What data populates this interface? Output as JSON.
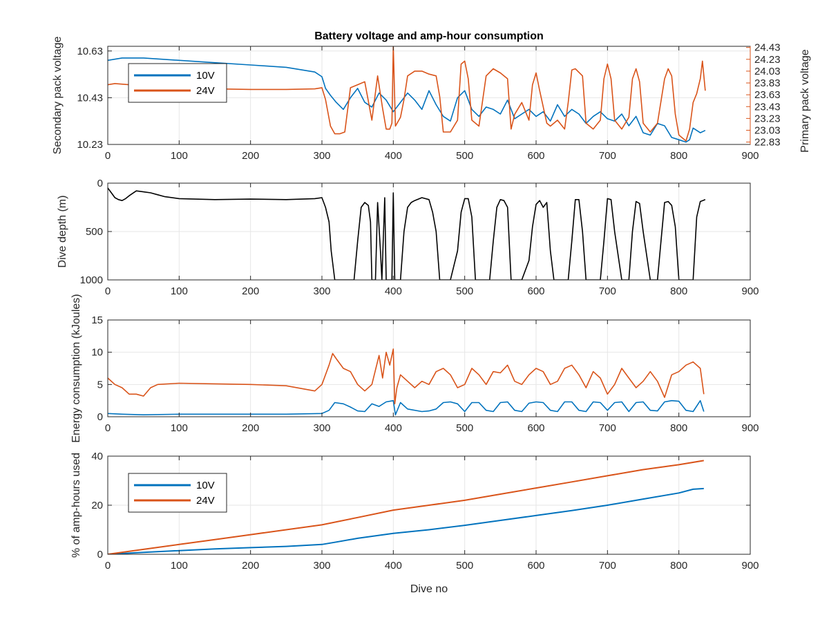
{
  "figure": {
    "title": "Battery voltage and amp-hour consumption",
    "xlabel": "Dive no"
  },
  "colors": {
    "blue": "#0072BD",
    "orange": "#D95319",
    "black": "#000000",
    "grid": "#e6e6e6",
    "axis": "#262626"
  },
  "chart_data": [
    {
      "type": "line",
      "title": "Battery voltage and amp-hour consumption",
      "xlim": [
        0,
        900
      ],
      "xticks": [
        0,
        100,
        200,
        300,
        400,
        500,
        600,
        700,
        800,
        900
      ],
      "ylabel": "Secondary pack voltage",
      "ylim": [
        10.23,
        10.65
      ],
      "yticks": [
        10.23,
        10.43,
        10.63
      ],
      "ytick_labels": [
        "10.23",
        "10.43",
        "10.63"
      ],
      "y2label": "Primary pack voltage",
      "y2lim": [
        22.79,
        24.45
      ],
      "y2ticks": [
        22.83,
        23.03,
        23.23,
        23.43,
        23.63,
        23.83,
        24.03,
        24.23,
        24.43
      ],
      "y2tick_labels": [
        "22.83",
        "23.03",
        "23.23",
        "23.43",
        "23.63",
        "23.83",
        "24.03",
        "24.23",
        "24.43"
      ],
      "grid": true,
      "legend": {
        "position": "top-left",
        "entries": [
          "10V",
          "24V"
        ]
      },
      "series": [
        {
          "name": "10V",
          "axis": "left",
          "color": "#0072BD",
          "x": [
            0,
            20,
            50,
            100,
            150,
            200,
            250,
            290,
            300,
            305,
            312,
            320,
            330,
            340,
            350,
            360,
            370,
            380,
            390,
            400,
            410,
            420,
            430,
            440,
            450,
            460,
            470,
            480,
            490,
            500,
            510,
            520,
            530,
            540,
            550,
            560,
            570,
            580,
            590,
            600,
            610,
            620,
            630,
            640,
            650,
            660,
            670,
            680,
            690,
            700,
            710,
            720,
            730,
            740,
            750,
            760,
            770,
            780,
            790,
            800,
            810,
            815,
            820,
            830,
            837
          ],
          "y": [
            10.59,
            10.6,
            10.6,
            10.59,
            10.58,
            10.57,
            10.56,
            10.54,
            10.52,
            10.47,
            10.44,
            10.41,
            10.38,
            10.43,
            10.47,
            10.41,
            10.39,
            10.45,
            10.42,
            10.37,
            10.41,
            10.45,
            10.42,
            10.38,
            10.46,
            10.4,
            10.35,
            10.33,
            10.43,
            10.46,
            10.38,
            10.35,
            10.39,
            10.38,
            10.36,
            10.42,
            10.34,
            10.36,
            10.38,
            10.35,
            10.37,
            10.33,
            10.4,
            10.35,
            10.38,
            10.36,
            10.32,
            10.35,
            10.37,
            10.34,
            10.33,
            10.36,
            10.31,
            10.35,
            10.28,
            10.27,
            10.32,
            10.31,
            10.26,
            10.25,
            10.24,
            10.25,
            10.3,
            10.28,
            10.29
          ]
        },
        {
          "name": "24V",
          "axis": "right",
          "color": "#D95319",
          "x": [
            0,
            10,
            30,
            50,
            100,
            150,
            200,
            250,
            290,
            300,
            305,
            312,
            318,
            325,
            332,
            340,
            350,
            360,
            370,
            378,
            385,
            390,
            395,
            398,
            400,
            403,
            410,
            415,
            420,
            430,
            440,
            450,
            460,
            465,
            470,
            480,
            490,
            495,
            500,
            505,
            510,
            520,
            530,
            540,
            550,
            560,
            565,
            570,
            580,
            590,
            595,
            600,
            605,
            615,
            620,
            630,
            640,
            645,
            650,
            655,
            665,
            670,
            680,
            690,
            695,
            700,
            705,
            710,
            720,
            730,
            735,
            740,
            745,
            750,
            760,
            770,
            780,
            785,
            790,
            795,
            800,
            805,
            810,
            815,
            820,
            825,
            830,
            833,
            837
          ],
          "y": [
            23.8,
            23.82,
            23.8,
            23.78,
            23.76,
            23.73,
            23.72,
            23.72,
            23.73,
            23.75,
            23.55,
            23.1,
            22.97,
            22.97,
            23.0,
            23.75,
            23.8,
            23.85,
            23.2,
            23.95,
            23.4,
            23.05,
            23.05,
            23.15,
            24.45,
            23.1,
            23.25,
            23.55,
            23.95,
            24.03,
            24.03,
            23.98,
            23.95,
            23.6,
            23.0,
            23.0,
            23.2,
            24.15,
            24.2,
            23.9,
            23.2,
            23.1,
            23.95,
            24.07,
            24.0,
            23.9,
            23.05,
            23.3,
            23.5,
            23.2,
            23.8,
            24.0,
            23.7,
            23.15,
            23.1,
            23.2,
            23.05,
            23.5,
            24.05,
            24.07,
            23.95,
            23.15,
            23.05,
            23.2,
            23.9,
            24.15,
            23.9,
            23.2,
            23.05,
            23.25,
            23.9,
            24.07,
            23.85,
            23.15,
            23.0,
            23.15,
            23.9,
            24.07,
            23.95,
            23.3,
            22.95,
            22.9,
            22.85,
            23.05,
            23.5,
            23.65,
            23.9,
            24.2,
            23.7
          ]
        }
      ]
    },
    {
      "type": "line",
      "xlim": [
        0,
        900
      ],
      "xticks": [
        0,
        100,
        200,
        300,
        400,
        500,
        600,
        700,
        800,
        900
      ],
      "ylabel": "Dive depth (m)",
      "ylim": [
        0,
        1000
      ],
      "y_reversed": true,
      "yticks": [
        0,
        500,
        1000
      ],
      "ytick_labels": [
        "0",
        "500",
        "1000"
      ],
      "grid": true,
      "series": [
        {
          "name": "Dive depth",
          "axis": "left",
          "color": "#000000",
          "x": [
            0,
            5,
            10,
            15,
            20,
            25,
            30,
            40,
            50,
            60,
            70,
            80,
            100,
            150,
            200,
            250,
            290,
            300,
            305,
            310,
            313,
            318,
            325,
            335,
            345,
            350,
            355,
            360,
            365,
            368,
            370,
            375,
            378,
            382,
            384,
            388,
            390,
            392,
            396,
            398,
            400,
            402,
            404,
            410,
            415,
            420,
            425,
            430,
            440,
            450,
            455,
            460,
            465,
            470,
            480,
            490,
            495,
            500,
            505,
            510,
            515,
            525,
            535,
            540,
            545,
            550,
            555,
            560,
            565,
            570,
            580,
            590,
            595,
            600,
            605,
            610,
            615,
            620,
            625,
            635,
            645,
            650,
            655,
            660,
            665,
            670,
            680,
            690,
            695,
            700,
            705,
            710,
            720,
            730,
            735,
            740,
            745,
            750,
            760,
            770,
            775,
            780,
            785,
            790,
            795,
            800,
            810,
            815,
            820,
            825,
            830,
            837
          ],
          "y": [
            50,
            100,
            150,
            170,
            180,
            160,
            130,
            80,
            90,
            100,
            120,
            140,
            160,
            170,
            165,
            170,
            160,
            150,
            250,
            400,
            700,
            1000,
            1000,
            1000,
            1000,
            600,
            250,
            200,
            230,
            400,
            1000,
            1000,
            200,
            700,
            1000,
            150,
            1000,
            1000,
            1000,
            1000,
            100,
            1000,
            1000,
            1000,
            500,
            250,
            200,
            180,
            150,
            170,
            300,
            500,
            1000,
            1000,
            1000,
            700,
            300,
            160,
            160,
            350,
            1000,
            1000,
            1000,
            600,
            250,
            170,
            180,
            250,
            1000,
            1000,
            1000,
            800,
            450,
            220,
            180,
            250,
            200,
            700,
            1000,
            1000,
            1000,
            600,
            170,
            170,
            500,
            1000,
            1000,
            1000,
            600,
            160,
            170,
            500,
            1000,
            1000,
            500,
            190,
            210,
            500,
            1000,
            1000,
            600,
            200,
            190,
            230,
            450,
            1000,
            1000,
            1000,
            1000,
            350,
            190,
            170
          ]
        }
      ]
    },
    {
      "type": "line",
      "xlim": [
        0,
        900
      ],
      "xticks": [
        0,
        100,
        200,
        300,
        400,
        500,
        600,
        700,
        800,
        900
      ],
      "ylabel": "Energy consumption (kJoules)",
      "ylim": [
        0,
        15
      ],
      "yticks": [
        0,
        5,
        10,
        15
      ],
      "ytick_labels": [
        "0",
        "5",
        "10",
        "15"
      ],
      "grid": true,
      "series": [
        {
          "name": "10V",
          "axis": "left",
          "color": "#0072BD",
          "x": [
            0,
            20,
            50,
            100,
            150,
            200,
            250,
            300,
            310,
            318,
            330,
            340,
            350,
            360,
            370,
            380,
            390,
            400,
            403,
            410,
            420,
            440,
            450,
            460,
            470,
            480,
            490,
            500,
            510,
            520,
            530,
            540,
            550,
            560,
            570,
            580,
            590,
            600,
            610,
            620,
            630,
            640,
            650,
            660,
            670,
            680,
            690,
            700,
            710,
            720,
            730,
            740,
            750,
            760,
            770,
            780,
            790,
            800,
            810,
            820,
            830,
            835
          ],
          "y": [
            0.5,
            0.4,
            0.3,
            0.4,
            0.4,
            0.4,
            0.4,
            0.5,
            1.0,
            2.2,
            2.0,
            1.5,
            0.9,
            0.8,
            2.0,
            1.6,
            2.3,
            2.5,
            0.3,
            2.2,
            1.2,
            0.8,
            0.9,
            1.2,
            2.2,
            2.3,
            2.0,
            0.8,
            2.2,
            2.2,
            1.0,
            0.8,
            2.2,
            2.3,
            1.0,
            0.8,
            2.1,
            2.3,
            2.2,
            1.0,
            0.8,
            2.3,
            2.3,
            1.0,
            0.8,
            2.3,
            2.2,
            1.0,
            2.2,
            2.3,
            0.8,
            2.2,
            2.3,
            1.0,
            0.9,
            2.3,
            2.5,
            2.4,
            1.0,
            0.8,
            2.5,
            0.8
          ]
        },
        {
          "name": "24V",
          "axis": "left",
          "color": "#D95319",
          "x": [
            0,
            10,
            20,
            30,
            40,
            50,
            60,
            70,
            100,
            150,
            200,
            250,
            290,
            300,
            310,
            315,
            320,
            330,
            340,
            350,
            360,
            370,
            380,
            385,
            390,
            395,
            400,
            402,
            405,
            410,
            420,
            430,
            440,
            450,
            460,
            470,
            480,
            490,
            500,
            510,
            520,
            530,
            540,
            550,
            560,
            570,
            580,
            590,
            600,
            610,
            620,
            630,
            640,
            650,
            660,
            670,
            680,
            690,
            700,
            710,
            720,
            730,
            740,
            750,
            760,
            770,
            780,
            790,
            800,
            810,
            820,
            830,
            835
          ],
          "y": [
            6.0,
            5.0,
            4.5,
            3.5,
            3.5,
            3.2,
            4.5,
            5.0,
            5.2,
            5.1,
            5.0,
            4.8,
            4.0,
            5.0,
            8.0,
            9.8,
            9.0,
            7.5,
            7.0,
            5.0,
            4.0,
            5.0,
            9.5,
            6.0,
            10.0,
            8.0,
            10.5,
            2.0,
            4.5,
            6.5,
            5.5,
            4.5,
            5.5,
            5.0,
            7.0,
            7.5,
            6.5,
            4.5,
            5.0,
            7.5,
            6.5,
            5.0,
            7.0,
            6.8,
            8.0,
            5.5,
            5.0,
            6.5,
            7.5,
            7.0,
            5.0,
            5.5,
            7.5,
            8.0,
            6.5,
            4.5,
            7.0,
            6.0,
            3.5,
            5.0,
            7.5,
            6.0,
            4.5,
            5.5,
            7.0,
            5.5,
            3.0,
            6.5,
            7.0,
            8.0,
            8.5,
            7.5,
            3.5
          ]
        }
      ]
    },
    {
      "type": "line",
      "xlim": [
        0,
        900
      ],
      "xticks": [
        0,
        100,
        200,
        300,
        400,
        500,
        600,
        700,
        800,
        900
      ],
      "xlabel": "Dive no",
      "ylabel": "% of amp-hours used",
      "ylim": [
        0,
        40
      ],
      "yticks": [
        0,
        20,
        40
      ],
      "ytick_labels": [
        "0",
        "20",
        "40"
      ],
      "grid": true,
      "legend": {
        "position": "top-left",
        "entries": [
          "10V",
          "24V"
        ]
      },
      "series": [
        {
          "name": "10V",
          "axis": "left",
          "color": "#0072BD",
          "x": [
            0,
            50,
            100,
            150,
            200,
            250,
            300,
            320,
            350,
            400,
            450,
            500,
            550,
            600,
            650,
            700,
            750,
            800,
            820,
            835
          ],
          "y": [
            0,
            0.8,
            1.5,
            2.2,
            2.7,
            3.2,
            4.0,
            5.0,
            6.5,
            8.5,
            10.0,
            11.8,
            13.8,
            15.8,
            17.8,
            20.0,
            22.5,
            25.0,
            26.5,
            26.8
          ]
        },
        {
          "name": "24V",
          "axis": "left",
          "color": "#D95319",
          "x": [
            0,
            50,
            100,
            150,
            200,
            250,
            300,
            350,
            400,
            450,
            500,
            550,
            600,
            650,
            700,
            750,
            800,
            835
          ],
          "y": [
            0,
            2.0,
            4.0,
            6.0,
            8.0,
            10.0,
            12.0,
            15.0,
            18.0,
            20.0,
            22.0,
            24.5,
            27.0,
            29.5,
            32.0,
            34.5,
            36.5,
            38.2
          ]
        }
      ]
    }
  ]
}
